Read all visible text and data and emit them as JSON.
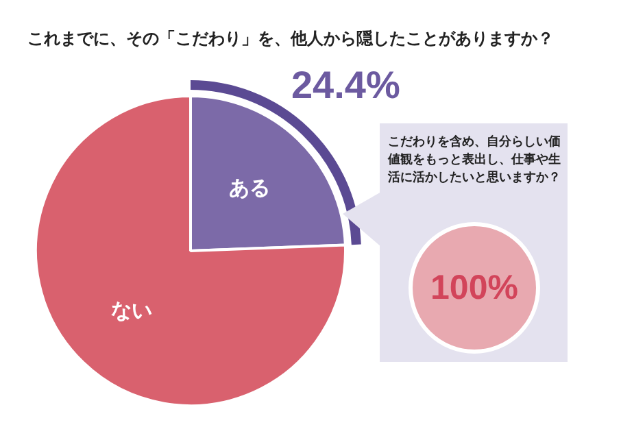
{
  "chart_data": {
    "type": "pie",
    "title": "これまでに、その「こだわり」を、他人から隠したことがありますか？",
    "categories": [
      "ある",
      "ない"
    ],
    "values": [
      24.4,
      75.6
    ],
    "colors": [
      "#7c6aa8",
      "#d9616e"
    ],
    "value_labels": [
      "24.4%",
      null
    ],
    "legend": false,
    "annotations": [
      "こだわりを含め、自分らしい価値観をもっと表出し、仕事や生活に活かしたいと思いますか？",
      "100%"
    ]
  }
}
